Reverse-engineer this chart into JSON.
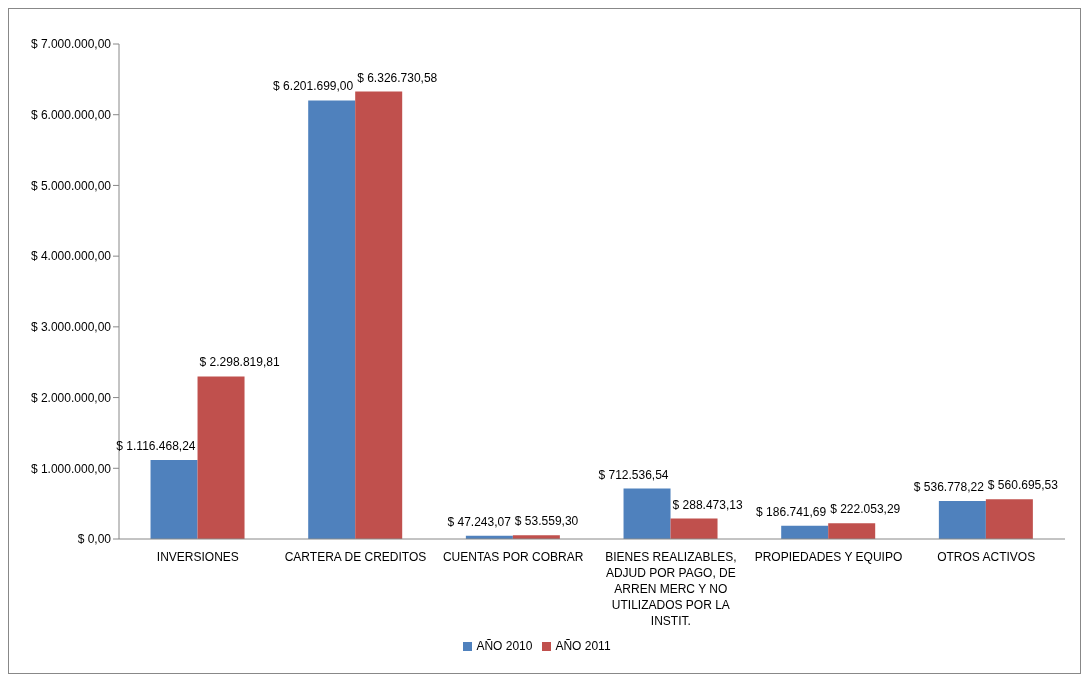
{
  "chart_data": {
    "type": "bar",
    "categories": [
      "INVERSIONES",
      "CARTERA DE CREDITOS",
      "CUENTAS POR COBRAR",
      "BIENES REALIZABLES, ADJUD POR PAGO, DE ARREN MERC Y NO UTILIZADOS POR LA INSTIT.",
      "PROPIEDADES Y EQUIPO",
      "OTROS ACTIVOS"
    ],
    "series": [
      {
        "name": "AÑO 2010",
        "color": "#4f81bd",
        "values": [
          1116468.24,
          6201699.0,
          47243.07,
          712536.54,
          186741.69,
          536778.22
        ],
        "value_labels": [
          "$ 1.116.468,24",
          "$ 6.201.699,00",
          "$ 47.243,07",
          "$ 712.536,54",
          "$ 186.741,69",
          "$ 536.778,22"
        ]
      },
      {
        "name": "AÑO 2011",
        "color": "#c0504d",
        "values": [
          2298819.81,
          6326730.58,
          53559.3,
          288473.13,
          222053.29,
          560695.53
        ],
        "value_labels": [
          "$ 2.298.819,81",
          "$ 6.326.730,58",
          "$ 53.559,30",
          "$ 288.473,13",
          "$ 222.053,29",
          "$ 560.695,53"
        ]
      }
    ],
    "ylim": [
      0,
      7000000
    ],
    "yticks": [
      {
        "value": 0,
        "label": "$ 0,00"
      },
      {
        "value": 1000000,
        "label": "$ 1.000.000,00"
      },
      {
        "value": 2000000,
        "label": "$ 2.000.000,00"
      },
      {
        "value": 3000000,
        "label": "$ 3.000.000,00"
      },
      {
        "value": 4000000,
        "label": "$ 4.000.000,00"
      },
      {
        "value": 5000000,
        "label": "$ 5.000.000,00"
      },
      {
        "value": 6000000,
        "label": "$ 6.000.000,00"
      },
      {
        "value": 7000000,
        "label": "$ 7.000.000,00"
      }
    ],
    "grid": false,
    "legend": "bottom"
  }
}
